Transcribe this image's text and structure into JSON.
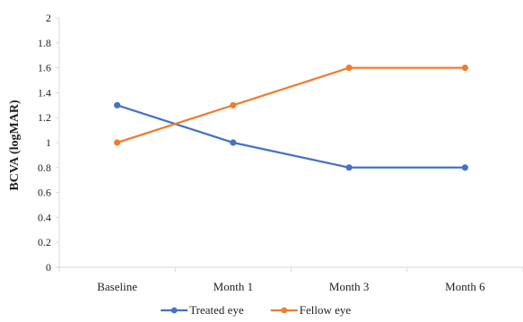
{
  "chart_data": {
    "type": "line",
    "categories": [
      "Baseline",
      "Month 1",
      "Month 3",
      "Month 6"
    ],
    "series": [
      {
        "name": "Treated eye",
        "values": [
          1.3,
          1.0,
          0.8,
          0.8
        ],
        "color": "#4472C4"
      },
      {
        "name": "Fellow eye",
        "values": [
          1.0,
          1.3,
          1.6,
          1.6
        ],
        "color": "#ED7D31"
      }
    ],
    "ylabel": "BCVA (logMAR)",
    "xlabel": "",
    "ylim": [
      0,
      2
    ],
    "yticks": [
      "0",
      "0.2",
      "0.4",
      "0.6",
      "0.8",
      "1",
      "1.2",
      "1.4",
      "1.6",
      "1.8",
      "2"
    ],
    "grid": false,
    "legend": "bottom-center",
    "axis_color": "#d9d9d9"
  }
}
